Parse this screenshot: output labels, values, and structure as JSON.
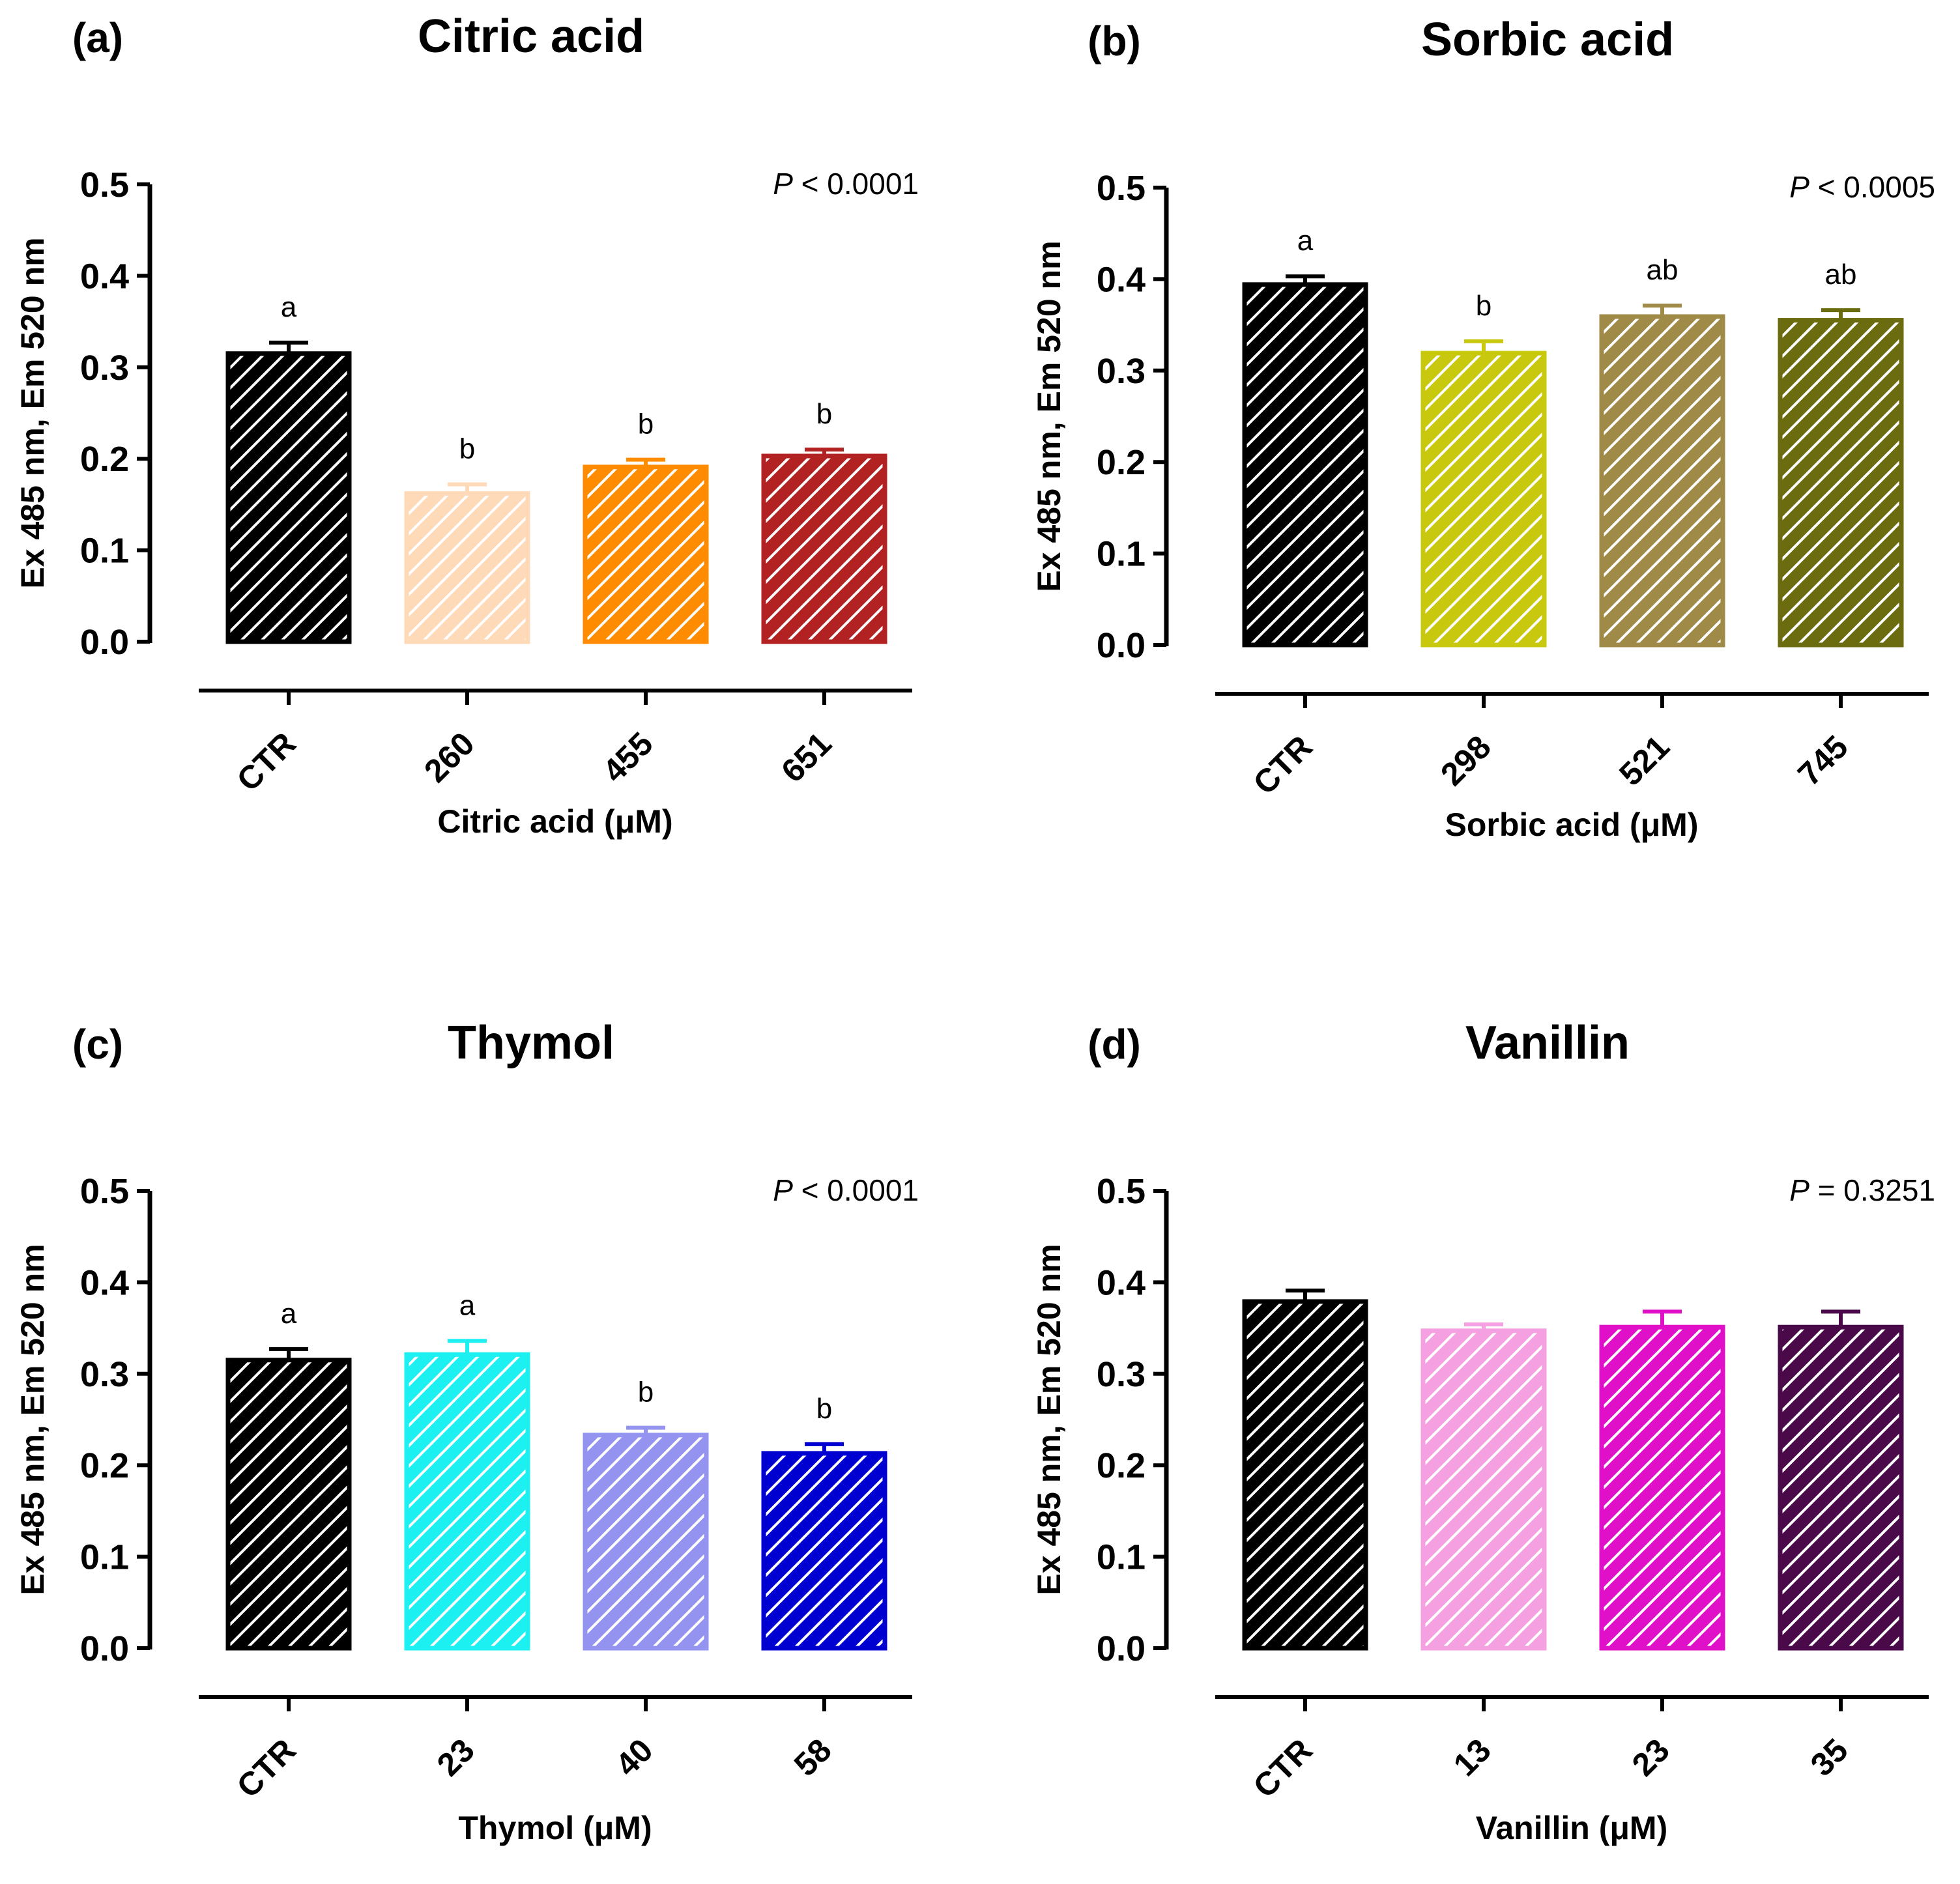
{
  "figure": {
    "y_axis_label": "Ex 485 nm, Em 520 nm",
    "y_ticks": [
      0.0,
      0.1,
      0.2,
      0.3,
      0.4,
      0.5
    ]
  },
  "chart_data": [
    {
      "type": "bar",
      "panel_label": "(a)",
      "title": "Citric acid",
      "xlabel": "Citric acid (μM)",
      "ylabel": "Ex 485 nm, Em 520 nm",
      "ylim": [
        0,
        0.5
      ],
      "p_prefix": "P",
      "p_rest": " < 0.0001",
      "categories": [
        "CTR",
        "260",
        "455",
        "651"
      ],
      "values": [
        0.315,
        0.162,
        0.191,
        0.203
      ],
      "errors": [
        0.012,
        0.01,
        0.008,
        0.007
      ],
      "letters": [
        "a",
        "b",
        "b",
        "b"
      ],
      "colors": [
        "#000000",
        "#FFDAB9",
        "#FF8C00",
        "#B22222"
      ]
    },
    {
      "type": "bar",
      "panel_label": "(b)",
      "title": "Sorbic acid",
      "xlabel": "Sorbic acid (μM)",
      "ylabel": "Ex 485 nm, Em 520 nm",
      "ylim": [
        0,
        0.5
      ],
      "p_prefix": "P",
      "p_rest": " < 0.0005",
      "categories": [
        "CTR",
        "298",
        "521",
        "745"
      ],
      "values": [
        0.394,
        0.319,
        0.359,
        0.355
      ],
      "errors": [
        0.009,
        0.013,
        0.012,
        0.011
      ],
      "letters": [
        "a",
        "b",
        "ab",
        "ab"
      ],
      "colors": [
        "#000000",
        "#C8C80F",
        "#A08A48",
        "#6B6B10"
      ]
    },
    {
      "type": "bar",
      "panel_label": "(c)",
      "title": "Thymol",
      "xlabel": "Thymol (μM)",
      "ylabel": "Ex 485 nm, Em 520 nm",
      "ylim": [
        0,
        0.5
      ],
      "p_prefix": "P",
      "p_rest": " < 0.0001",
      "categories": [
        "CTR",
        "23",
        "40",
        "58"
      ],
      "values": [
        0.315,
        0.321,
        0.233,
        0.213
      ],
      "errors": [
        0.012,
        0.015,
        0.008,
        0.01
      ],
      "letters": [
        "a",
        "a",
        "b",
        "b"
      ],
      "colors": [
        "#000000",
        "#1CF0F0",
        "#9494F0",
        "#0000D0"
      ]
    },
    {
      "type": "bar",
      "panel_label": "(d)",
      "title": "Vanillin",
      "xlabel": "Vanillin (μM)",
      "ylabel": "Ex 485 nm, Em 520 nm",
      "ylim": [
        0,
        0.5
      ],
      "p_prefix": "P",
      "p_rest": " = 0.3251",
      "categories": [
        "CTR",
        "13",
        "23",
        "35"
      ],
      "values": [
        0.379,
        0.347,
        0.351,
        0.351
      ],
      "errors": [
        0.012,
        0.007,
        0.017,
        0.017
      ],
      "letters": [
        "",
        "",
        "",
        ""
      ],
      "colors": [
        "#000000",
        "#F5A0E0",
        "#E010C8",
        "#4A0A4A"
      ]
    }
  ]
}
